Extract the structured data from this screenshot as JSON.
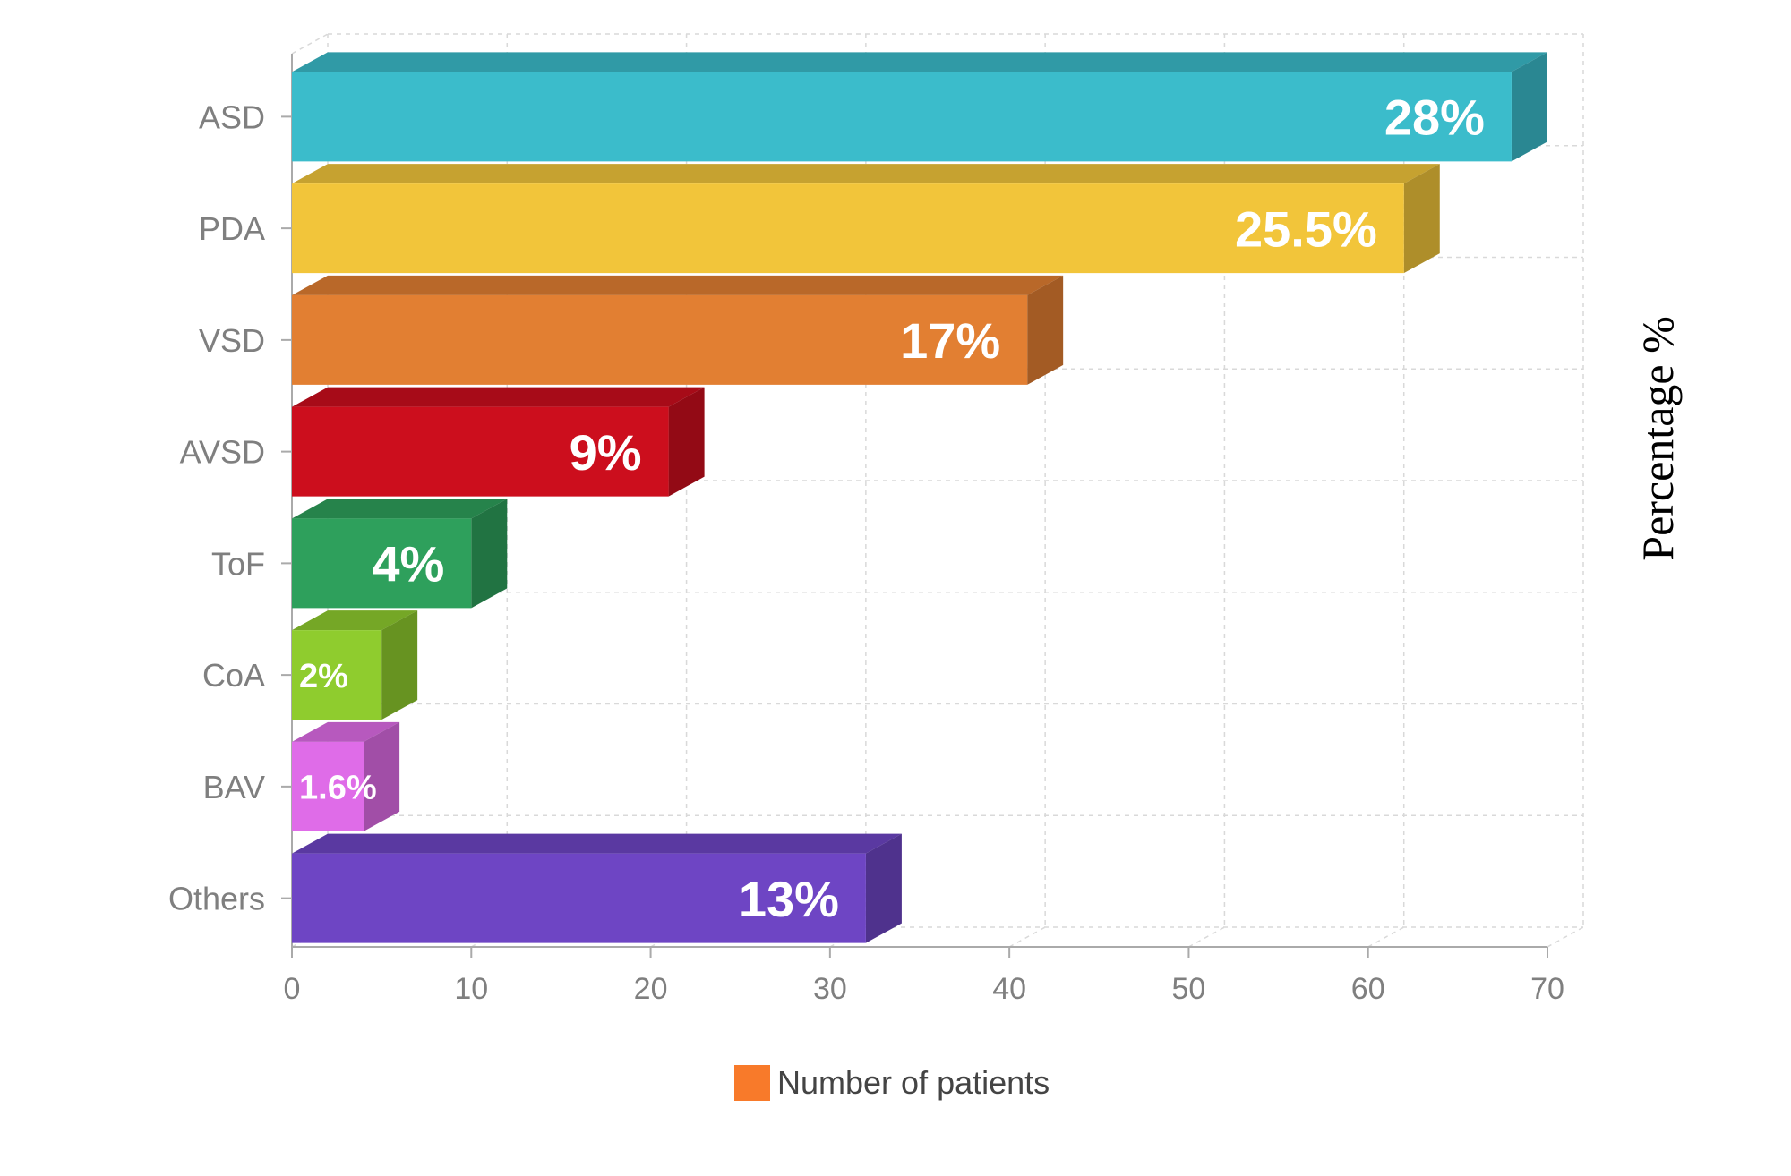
{
  "chart_data": {
    "type": "bar",
    "orientation": "horizontal",
    "style": "3d",
    "categories": [
      "ASD",
      "PDA",
      "VSD",
      "AVSD",
      "ToF",
      "CoA",
      "BAV",
      "Others"
    ],
    "series": [
      {
        "name": "Number of patients",
        "values": [
          68,
          62,
          41,
          21,
          10,
          5,
          4,
          32
        ]
      }
    ],
    "data_labels": [
      "28%",
      "25.5%",
      "17%",
      "9%",
      "4%",
      "2%",
      "1.6%",
      "13%"
    ],
    "bar_colors": [
      "#3bbccb",
      "#f2c53a",
      "#e27f32",
      "#cc0e1d",
      "#2ea05c",
      "#8fcc2e",
      "#df6ce8",
      "#6e45c4"
    ],
    "legend_color": "#f87a2a",
    "xlim": [
      0,
      70
    ],
    "x_ticks": [
      0,
      10,
      20,
      30,
      40,
      50,
      60,
      70
    ],
    "side_label": "Percentage %",
    "title": "",
    "xlabel": "",
    "ylabel": "",
    "grid": true,
    "legend_position": "bottom"
  }
}
